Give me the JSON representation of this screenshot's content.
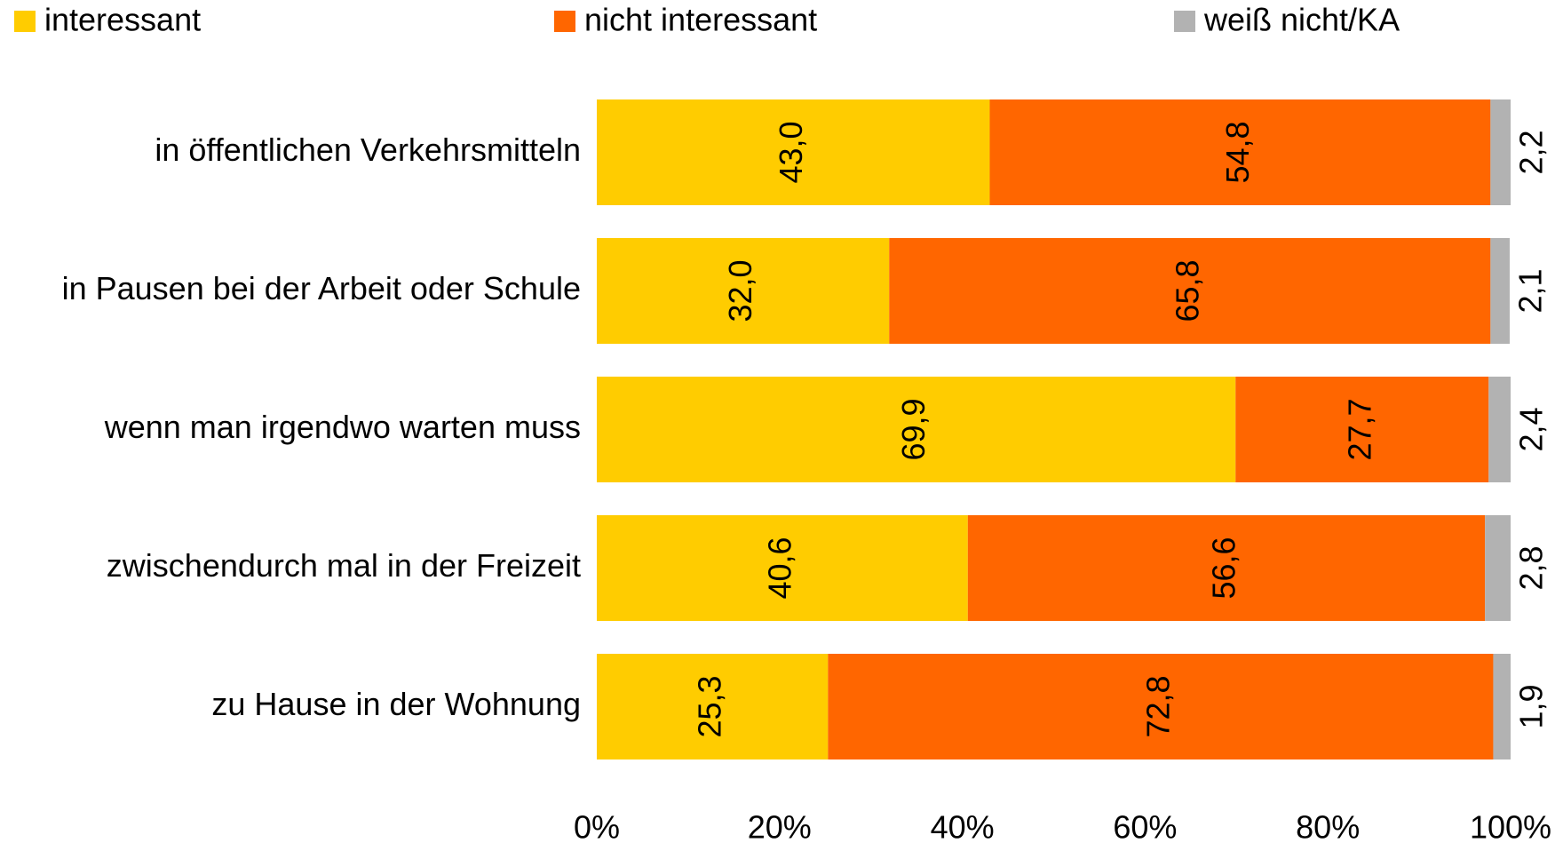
{
  "chart_data": {
    "type": "stacked_bar_horizontal",
    "categories": [
      "in öffentlichen Verkehrsmitteln",
      "in Pausen bei der Arbeit oder Schule",
      "wenn man irgendwo warten muss",
      "zwischendurch mal in der Freizeit",
      "zu Hause in der Wohnung"
    ],
    "series": [
      {
        "name": "interessant",
        "color": "#ffcc00",
        "values": [
          43.0,
          32.0,
          69.9,
          40.6,
          25.3
        ],
        "value_labels": [
          "43,0",
          "32,0",
          "69,9",
          "40,6",
          "25,3"
        ]
      },
      {
        "name": "nicht interessant",
        "color": "#ff6600",
        "values": [
          54.8,
          65.8,
          27.7,
          56.6,
          72.8
        ],
        "value_labels": [
          "54,8",
          "65,8",
          "27,7",
          "56,6",
          "72,8"
        ]
      },
      {
        "name": "weiß nicht/KA",
        "color": "#b2b2b2",
        "values": [
          2.2,
          2.1,
          2.4,
          2.8,
          1.9
        ],
        "value_labels": [
          "2,2",
          "2,1",
          "2,4",
          "2,8",
          "1,9"
        ]
      }
    ],
    "xlim": [
      0,
      100
    ],
    "xticks": [
      {
        "value": 0,
        "label": "0%"
      },
      {
        "value": 20,
        "label": "20%"
      },
      {
        "value": 40,
        "label": "40%"
      },
      {
        "value": 60,
        "label": "60%"
      },
      {
        "value": 80,
        "label": "80%"
      },
      {
        "value": 100,
        "label": "100%"
      }
    ],
    "legend": "top"
  }
}
